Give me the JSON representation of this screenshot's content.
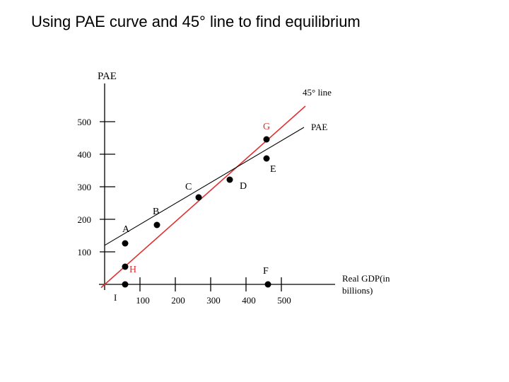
{
  "slide": {
    "title": "Using PAE curve and 45° line to find equilibrium"
  },
  "chart_data": {
    "type": "line",
    "title": "",
    "ylabel": "PAE",
    "xlabel": "Real GDP(in billions)",
    "xlabel_lines": [
      "Real GDP(in",
      "billions)"
    ],
    "origin_label": "I",
    "x_ticks": [
      100,
      200,
      300,
      400,
      500
    ],
    "y_ticks": [
      100,
      200,
      300,
      400,
      500
    ],
    "xlim": [
      0,
      560
    ],
    "ylim": [
      0,
      600
    ],
    "series": [
      {
        "name": "45° line",
        "color": "#e03030",
        "x": [
          -10,
          520
        ],
        "y": [
          -10,
          520
        ]
      },
      {
        "name": "PAE",
        "color": "#000000",
        "x": [
          0,
          520
        ],
        "y": [
          120,
          480
        ]
      }
    ],
    "points": [
      {
        "label": "A",
        "x": 0,
        "y": 120
      },
      {
        "label": "B",
        "x": 85,
        "y": 175
      },
      {
        "label": "C",
        "x": 225,
        "y": 270
      },
      {
        "label": "D",
        "x": 310,
        "y": 328
      },
      {
        "label": "E",
        "x": 385,
        "y": 378
      },
      {
        "label": "G",
        "x": 385,
        "y": 455
      },
      {
        "label": "H",
        "x": 0,
        "y": 20
      },
      {
        "label": "I",
        "x": 0,
        "y": 0
      },
      {
        "label": "F",
        "x": 390,
        "y": 0
      }
    ],
    "point_labels": [
      {
        "text": "A",
        "color": "#000000"
      },
      {
        "text": "B",
        "color": "#000000"
      },
      {
        "text": "C",
        "color": "#000000"
      },
      {
        "text": "D",
        "color": "#000000"
      },
      {
        "text": "E",
        "color": "#000000"
      },
      {
        "text": "G",
        "color": "#e03030"
      },
      {
        "text": "H",
        "color": "#e03030"
      },
      {
        "text": "F",
        "color": "#000000"
      }
    ],
    "grid": false,
    "legend": "none"
  }
}
